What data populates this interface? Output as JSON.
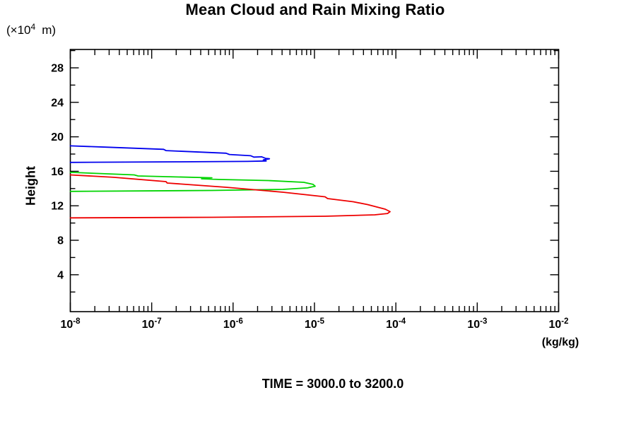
{
  "chart_data": {
    "type": "line",
    "title": "Mean Cloud and Rain Mixing Ratio",
    "annotation": "TIME = 3000.0 to 3200.0",
    "ylabel": "Height",
    "y_unit": {
      "prefix": "(×10",
      "exp": "4",
      "suffix": "m)"
    },
    "x_unit": "(kg/kg)",
    "x_scale": "log",
    "xlim": [
      1e-08,
      0.01
    ],
    "x_tick_base": "10",
    "x_major_tick_exponents": [
      -8,
      -7,
      -6,
      -5,
      -4,
      -3,
      -2
    ],
    "ylim": [
      0,
      30
    ],
    "y_major_ticks": [
      4,
      8,
      12,
      16,
      20,
      24,
      28
    ],
    "y_minor_ticks": [
      2,
      6,
      10,
      14,
      18,
      22,
      26,
      30
    ],
    "grid": false,
    "legend": "none",
    "frame_color": "#000000",
    "points_format": "[mixing_ratio_kg_per_kg, height_x10^4_m]",
    "series": [
      {
        "name": "blue-profile",
        "color": "#0000ee",
        "points": [
          [
            1e-08,
            18.95
          ],
          [
            2.7e-08,
            18.8
          ],
          [
            1.4e-07,
            18.55
          ],
          [
            1.5e-07,
            18.4
          ],
          [
            8.2e-07,
            18.1
          ],
          [
            9e-07,
            17.95
          ],
          [
            1.65e-06,
            17.8
          ],
          [
            1.8e-06,
            17.65
          ],
          [
            2.25e-06,
            17.68
          ],
          [
            2.5e-06,
            17.5
          ],
          [
            2.8e-06,
            17.45
          ],
          [
            2.35e-06,
            17.32
          ],
          [
            2.55e-06,
            17.2
          ],
          [
            1.5e-06,
            17.15
          ],
          [
            2e-07,
            17.1
          ],
          [
            1e-08,
            17.03
          ]
        ]
      },
      {
        "name": "green-profile",
        "color": "#00d400",
        "points": [
          [
            1e-08,
            15.88
          ],
          [
            6.1e-08,
            15.58
          ],
          [
            6.8e-08,
            15.46
          ],
          [
            5.5e-07,
            15.25
          ],
          [
            4.1e-07,
            15.13
          ],
          [
            7e-07,
            15.05
          ],
          [
            2.7e-06,
            14.93
          ],
          [
            7.4e-06,
            14.72
          ],
          [
            9.6e-06,
            14.48
          ],
          [
            1.02e-05,
            14.27
          ],
          [
            8.2e-06,
            14.07
          ],
          [
            4.1e-06,
            13.9
          ],
          [
            5.5e-07,
            13.78
          ],
          [
            1e-08,
            13.67
          ]
        ]
      },
      {
        "name": "red-profile",
        "color": "#ee0000",
        "points": [
          [
            1e-08,
            15.58
          ],
          [
            3.4e-08,
            15.3
          ],
          [
            1.5e-07,
            14.8
          ],
          [
            1.55e-07,
            14.64
          ],
          [
            8.2e-07,
            14.15
          ],
          [
            4.1e-06,
            13.57
          ],
          [
            1.35e-05,
            13.04
          ],
          [
            1.45e-05,
            12.84
          ],
          [
            3e-05,
            12.47
          ],
          [
            4.5e-05,
            12.14
          ],
          [
            7.4e-05,
            11.61
          ],
          [
            8.5e-05,
            11.32
          ],
          [
            7.9e-05,
            11.11
          ],
          [
            5.5e-05,
            10.95
          ],
          [
            1.35e-05,
            10.79
          ],
          [
            5.5e-07,
            10.66
          ],
          [
            1e-08,
            10.6
          ]
        ]
      }
    ]
  }
}
